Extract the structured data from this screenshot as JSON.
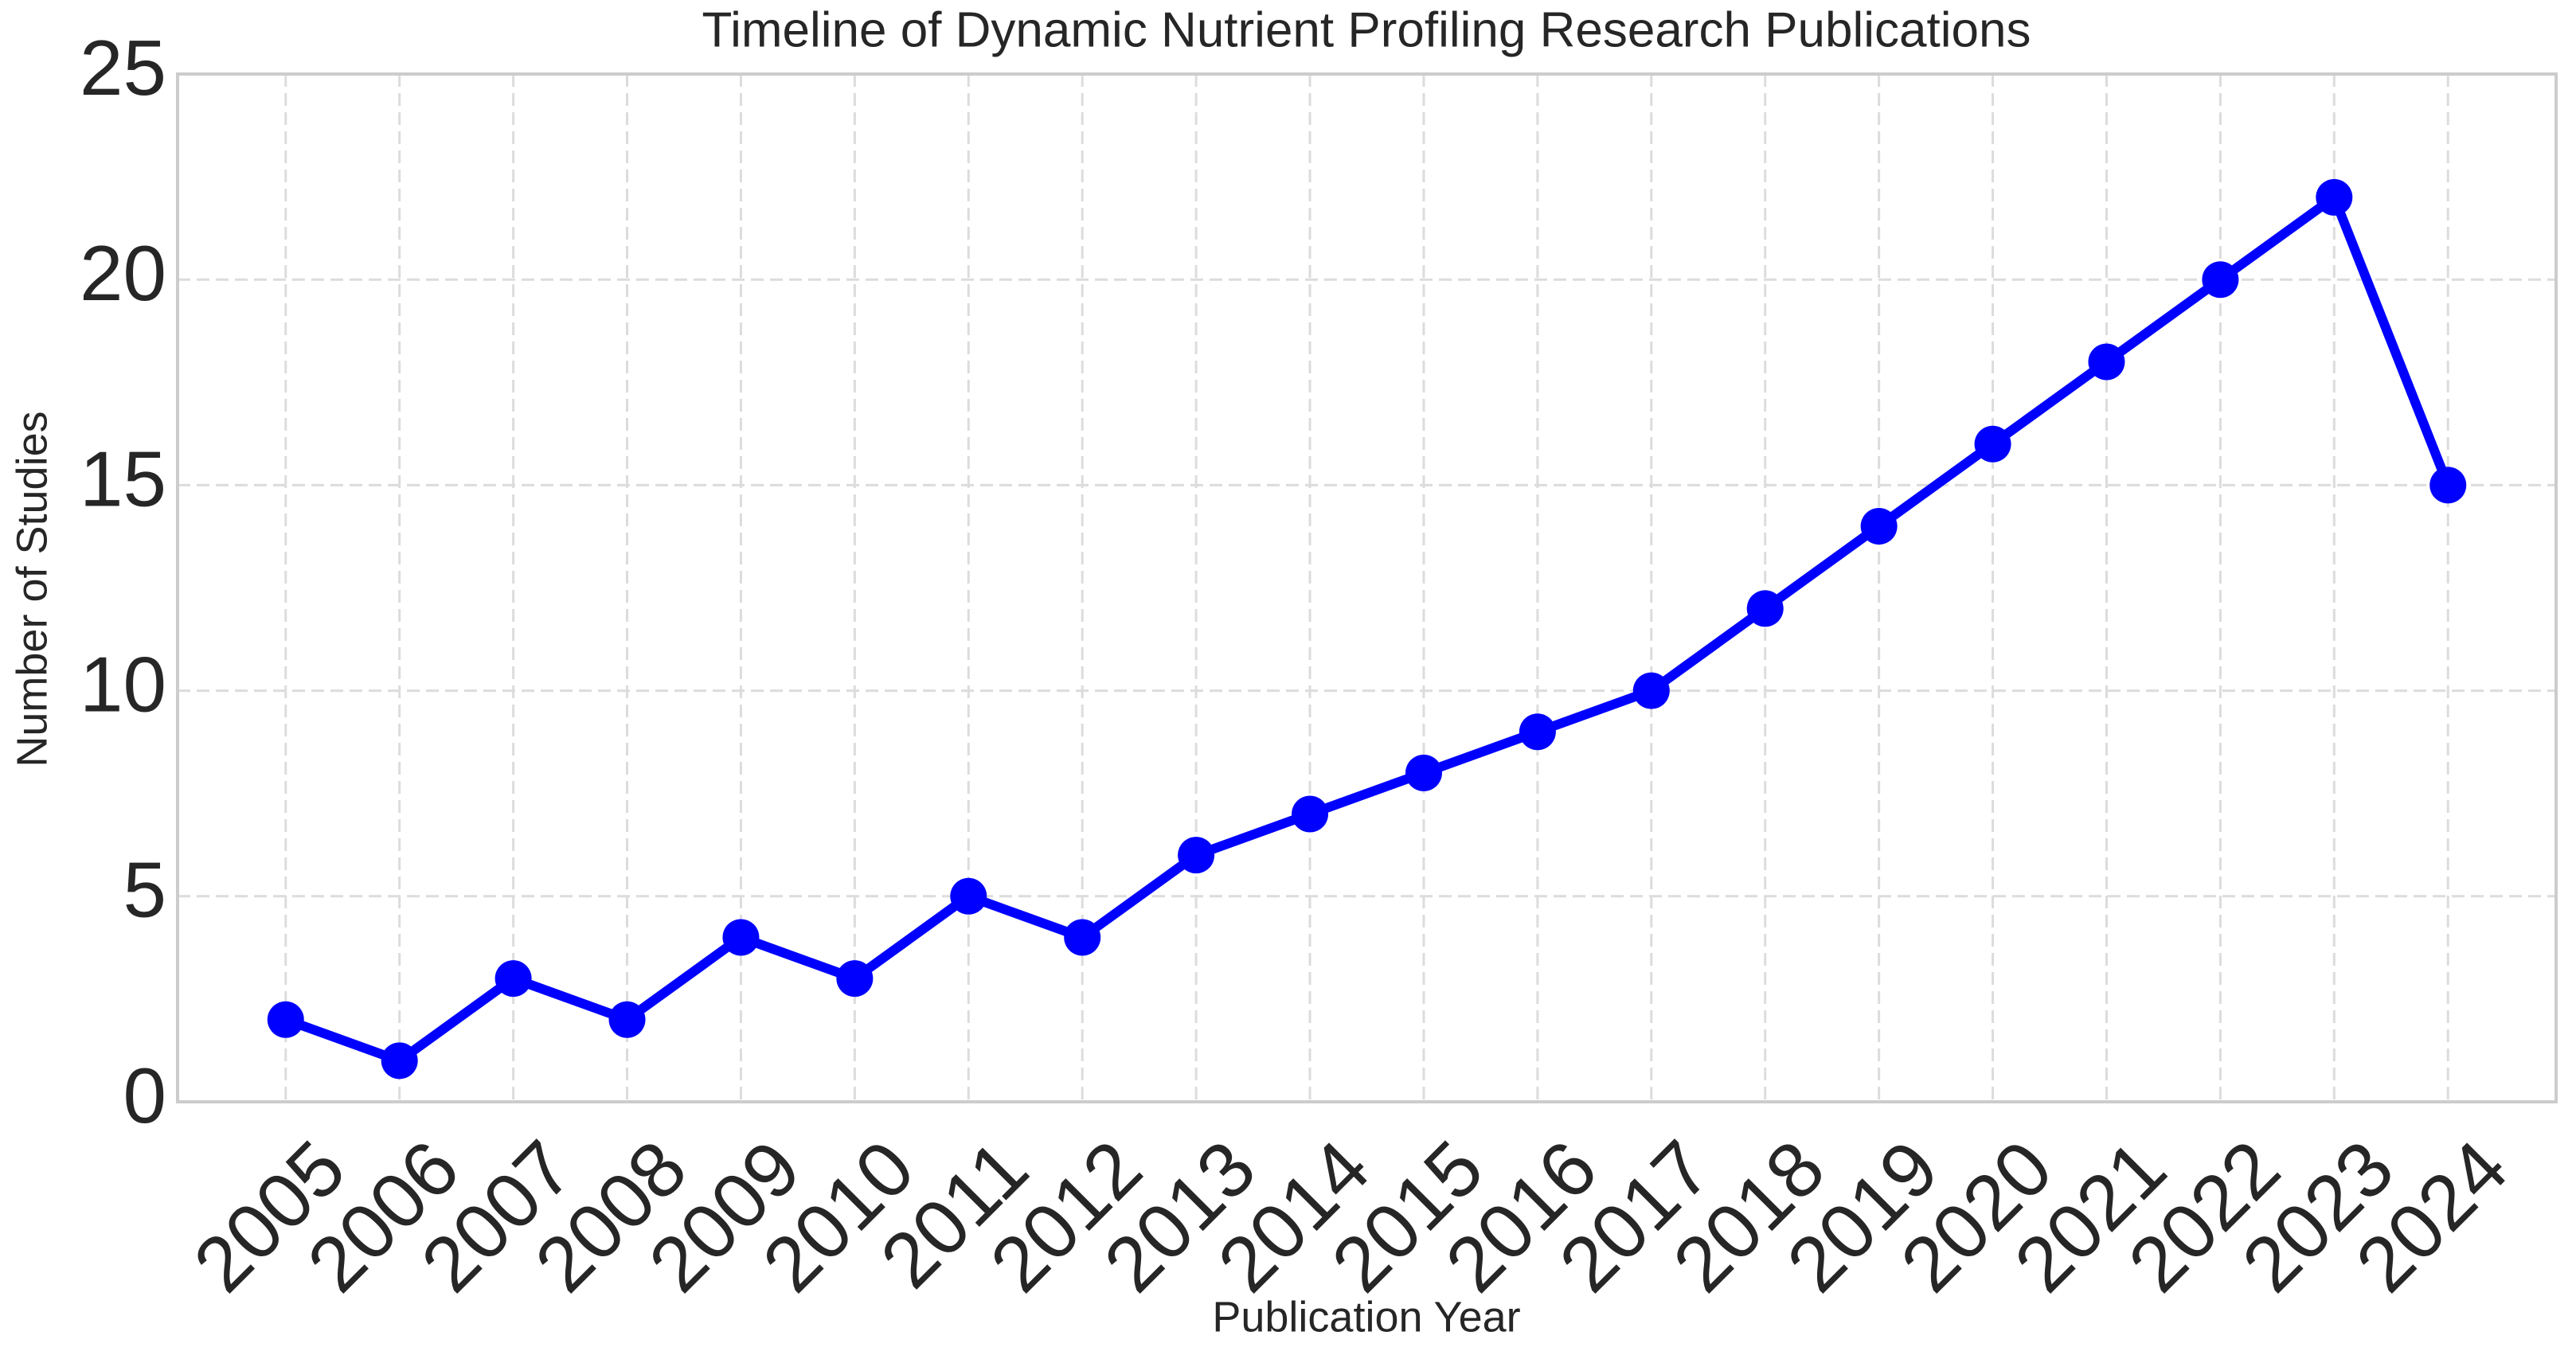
{
  "chart_data": {
    "type": "line",
    "title": "Timeline of Dynamic Nutrient Profiling Research Publications",
    "x_label": "Publication Year",
    "y_label": "Number of Studies",
    "x": [
      2005,
      2006,
      2007,
      2008,
      2009,
      2010,
      2011,
      2012,
      2013,
      2014,
      2015,
      2016,
      2017,
      2018,
      2019,
      2020,
      2021,
      2022,
      2023,
      2024
    ],
    "values": [
      2,
      1,
      3,
      2,
      4,
      3,
      5,
      4,
      6,
      7,
      8,
      9,
      10,
      12,
      14,
      16,
      18,
      20,
      22,
      15
    ],
    "color": "#0000ff",
    "xlim": [
      2004.05,
      2024.95
    ],
    "xticks": [
      2005,
      2006,
      2007,
      2008,
      2009,
      2010,
      2011,
      2012,
      2013,
      2014,
      2015,
      2016,
      2017,
      2018,
      2019,
      2020,
      2021,
      2022,
      2023,
      2024
    ],
    "ylim": [
      0,
      25
    ],
    "yticks": [
      0,
      5,
      10,
      15,
      20,
      25
    ],
    "grid": true
  }
}
